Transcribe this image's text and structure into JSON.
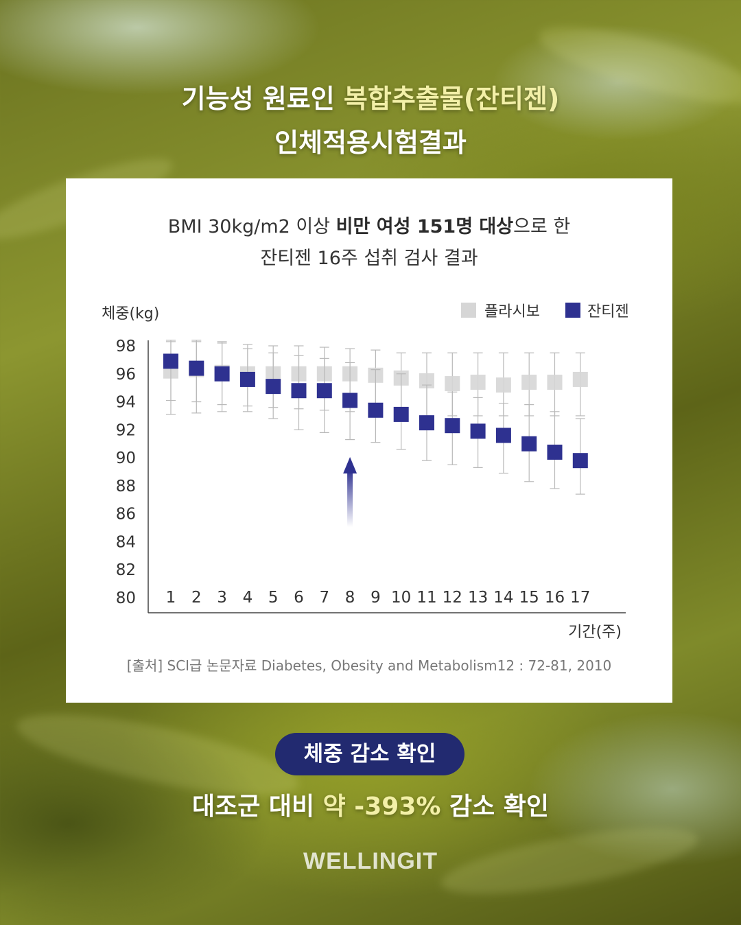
{
  "headline": {
    "line1_prefix": "기능성 원료인 ",
    "line1_highlight": "복합추출물(잔티젠)",
    "line2": "인체적용시험결과"
  },
  "card": {
    "subtitle_line1": {
      "p1": "BMI 30kg/m2 이상 ",
      "b1": "비만 여성 151명 대상",
      "p2": "으로 한"
    },
    "subtitle_line2": "잔티젠 16주 섭취 검사 결과",
    "source": "[출처] SCI급 논문자료 Diabetes, Obesity and Metabolism12 : 72-81, 2010"
  },
  "chart_data": {
    "type": "scatter",
    "ylabel": "체중(kg)",
    "xlabel": "기간(주)",
    "ylim": [
      80,
      98
    ],
    "yticks": [
      98,
      96,
      94,
      92,
      90,
      88,
      86,
      84,
      82,
      80
    ],
    "x": [
      1,
      2,
      3,
      4,
      5,
      6,
      7,
      8,
      9,
      10,
      11,
      12,
      13,
      14,
      15,
      16,
      17
    ],
    "legend_position": "top-right",
    "arrow_at_week": 8,
    "series": [
      {
        "name": "플라시보",
        "color": "#d6d6d6",
        "values": [
          96.2,
          96.3,
          96.1,
          96.0,
          96.0,
          96.0,
          96.0,
          96.0,
          95.9,
          95.7,
          95.5,
          95.3,
          95.4,
          95.2,
          95.4,
          95.4,
          95.6
        ],
        "err_upper": [
          98.3,
          98.3,
          98.2,
          98.1,
          98.0,
          98.0,
          97.9,
          97.8,
          97.7,
          97.5,
          97.5,
          97.5,
          97.5,
          97.5,
          97.5,
          97.5,
          97.5
        ],
        "err_lower": [
          94.1,
          94.0,
          93.8,
          93.7,
          93.6,
          93.5,
          93.4,
          93.3,
          93.2,
          93.1,
          93.0,
          93.0,
          93.0,
          93.0,
          93.0,
          93.0,
          93.0
        ]
      },
      {
        "name": "잔티젠",
        "color": "#2e3190",
        "values": [
          96.9,
          96.4,
          96.0,
          95.6,
          95.1,
          94.8,
          94.8,
          94.1,
          93.4,
          93.1,
          92.5,
          92.3,
          91.9,
          91.6,
          91.0,
          90.4,
          89.8
        ],
        "err_upper": [
          98.4,
          98.4,
          98.3,
          97.8,
          97.5,
          97.3,
          97.1,
          96.8,
          96.3,
          96.0,
          95.2,
          94.7,
          94.3,
          93.9,
          93.8,
          93.3,
          92.8
        ],
        "err_lower": [
          93.1,
          93.2,
          93.3,
          93.3,
          92.8,
          92.0,
          91.8,
          91.3,
          91.1,
          90.6,
          89.8,
          89.5,
          89.3,
          88.9,
          88.3,
          87.8,
          87.4
        ]
      }
    ]
  },
  "result": {
    "pill_text": "체중 감소 확인",
    "line_prefix": "대조군 대비 ",
    "line_highlight": "약 -393%",
    "line_suffix": " 감소 확인"
  },
  "brand": "WELLINGIT",
  "colors": {
    "accent_navy": "#222a70",
    "highlight_yellow": "#f3f0a8",
    "placebo_gray": "#d6d6d6",
    "xanthigen_blue": "#2e3190"
  }
}
